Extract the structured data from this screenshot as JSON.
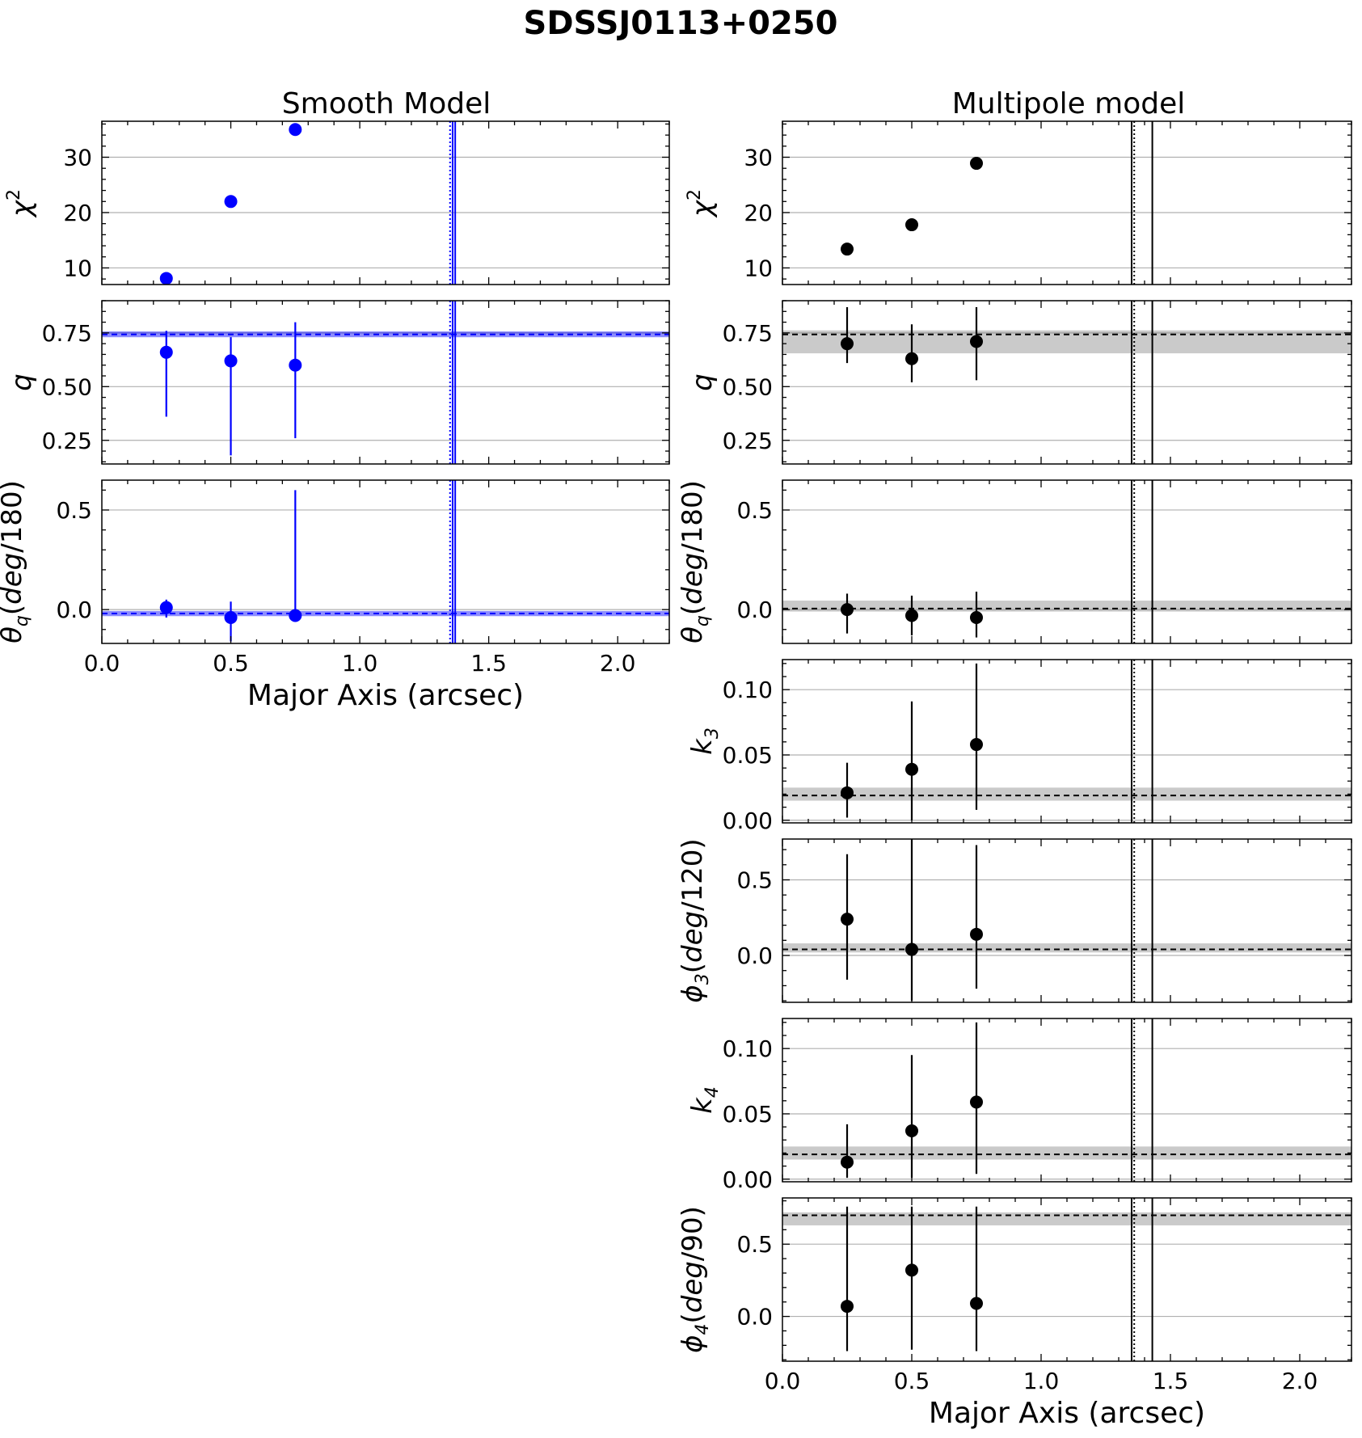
{
  "figure_title": "SDSSJ0113+0250",
  "columns": [
    {
      "id": "smooth",
      "title": "Smooth Model",
      "color": "#0000ff",
      "band_color": "#0000ff",
      "band_opacity": 0.45,
      "vline_style": "dotted",
      "xlabel": "Major Axis (arcsec)"
    },
    {
      "id": "multipole",
      "title": "Multipole model",
      "color": "#000000",
      "band_color": "#808080",
      "band_opacity": 0.42,
      "vline_style": "dotted",
      "xlabel": "Major Axis (arcsec)"
    }
  ],
  "ylabels": {
    "chi2": {
      "base": "χ",
      "sup": "2",
      "sub": "",
      "rest": ""
    },
    "q": {
      "base": "q",
      "sup": "",
      "sub": "",
      "rest": ""
    },
    "theta_q": {
      "base": "θ",
      "sup": "",
      "sub": "q",
      "rest": "(deg/180)"
    },
    "k3": {
      "base": "k",
      "sup": "",
      "sub": "3",
      "rest": ""
    },
    "phi3": {
      "base": "ϕ",
      "sup": "",
      "sub": "3",
      "rest": "(deg/120)"
    },
    "k4": {
      "base": "k",
      "sup": "",
      "sub": "4",
      "rest": ""
    },
    "phi4": {
      "base": "ϕ",
      "sup": "",
      "sub": "4",
      "rest": "(deg/90)"
    }
  },
  "chart_data": [
    {
      "type": "scatter",
      "column": "smooth",
      "ylabel_key": "chi2",
      "xlim": [
        0.0,
        2.2
      ],
      "ylim": [
        7,
        36.5
      ],
      "yticks": [
        10,
        20,
        30
      ],
      "ytick_labels": [
        "10",
        "20",
        "30"
      ],
      "grid": "y",
      "x": [
        0.25,
        0.5,
        0.75
      ],
      "y": [
        8.1,
        22.0,
        35.0
      ],
      "yerr": null,
      "ref_line": null,
      "ref_band": null,
      "vlines": [
        1.35,
        1.37
      ]
    },
    {
      "type": "scatter",
      "column": "smooth",
      "ylabel_key": "q",
      "xlim": [
        0.0,
        2.2
      ],
      "ylim": [
        0.14,
        0.9
      ],
      "yticks": [
        0.25,
        0.5,
        0.75
      ],
      "ytick_labels": [
        "0.25",
        "0.50",
        "0.75"
      ],
      "grid": "y",
      "x": [
        0.25,
        0.5,
        0.75
      ],
      "y": [
        0.66,
        0.62,
        0.6
      ],
      "yerr": [
        [
          0.3,
          0.1
        ],
        [
          0.44,
          0.11
        ],
        [
          0.34,
          0.2
        ]
      ],
      "ref_line": 0.743,
      "ref_band": [
        0.73,
        0.757
      ],
      "vlines": [
        1.35,
        1.37
      ]
    },
    {
      "type": "scatter",
      "column": "smooth",
      "ylabel_key": "theta_q",
      "xlim": [
        0.0,
        2.2
      ],
      "ylim": [
        -0.17,
        0.65
      ],
      "yticks": [
        0.0,
        0.5
      ],
      "ytick_labels": [
        "0.0",
        "0.5"
      ],
      "grid": "y",
      "x": [
        0.25,
        0.5,
        0.75
      ],
      "y": [
        0.01,
        -0.04,
        -0.03
      ],
      "yerr": [
        [
          0.05,
          0.04
        ],
        [
          0.12,
          0.08
        ],
        [
          0.02,
          0.63
        ]
      ],
      "ref_line": -0.02,
      "ref_band": [
        -0.033,
        -0.007
      ],
      "vlines": [
        1.35,
        1.37
      ],
      "xticks": [
        0.0,
        0.5,
        1.0,
        1.5,
        2.0
      ],
      "xtick_labels": [
        "0.0",
        "0.5",
        "1.0",
        "1.5",
        "2.0"
      ],
      "show_xlabel": true
    },
    {
      "type": "scatter",
      "column": "multipole",
      "ylabel_key": "chi2",
      "xlim": [
        0.0,
        2.2
      ],
      "ylim": [
        7,
        36.5
      ],
      "yticks": [
        10,
        20,
        30
      ],
      "ytick_labels": [
        "10",
        "20",
        "30"
      ],
      "grid": "y",
      "x": [
        0.25,
        0.5,
        0.75
      ],
      "y": [
        13.4,
        17.8,
        28.9
      ],
      "yerr": null,
      "ref_line": null,
      "ref_band": null,
      "vlines": [
        1.36,
        1.43
      ]
    },
    {
      "type": "scatter",
      "column": "multipole",
      "ylabel_key": "q",
      "xlim": [
        0.0,
        2.2
      ],
      "ylim": [
        0.14,
        0.9
      ],
      "yticks": [
        0.25,
        0.5,
        0.75
      ],
      "ytick_labels": [
        "0.25",
        "0.50",
        "0.75"
      ],
      "grid": "y",
      "x": [
        0.25,
        0.5,
        0.75
      ],
      "y": [
        0.7,
        0.63,
        0.71
      ],
      "yerr": [
        [
          0.09,
          0.17
        ],
        [
          0.11,
          0.16
        ],
        [
          0.18,
          0.16
        ]
      ],
      "ref_line": 0.743,
      "ref_band": [
        0.655,
        0.762
      ],
      "vlines": [
        1.36,
        1.43
      ]
    },
    {
      "type": "scatter",
      "column": "multipole",
      "ylabel_key": "theta_q",
      "xlim": [
        0.0,
        2.2
      ],
      "ylim": [
        -0.17,
        0.65
      ],
      "yticks": [
        0.0,
        0.5
      ],
      "ytick_labels": [
        "0.0",
        "0.5"
      ],
      "grid": "y",
      "x": [
        0.25,
        0.5,
        0.75
      ],
      "y": [
        0.0,
        -0.03,
        -0.04
      ],
      "yerr": [
        [
          0.12,
          0.08
        ],
        [
          0.1,
          0.1
        ],
        [
          0.1,
          0.13
        ]
      ],
      "ref_line": 0.005,
      "ref_band": [
        -0.01,
        0.045
      ],
      "vlines": [
        1.36,
        1.43
      ]
    },
    {
      "type": "scatter",
      "column": "multipole",
      "ylabel_key": "k3",
      "xlim": [
        0.0,
        2.2
      ],
      "ylim": [
        -0.002,
        0.123
      ],
      "yticks": [
        0.0,
        0.05,
        0.1
      ],
      "ytick_labels": [
        "0.00",
        "0.05",
        "0.10"
      ],
      "grid": "y",
      "x": [
        0.25,
        0.5,
        0.75
      ],
      "y": [
        0.021,
        0.039,
        0.058
      ],
      "yerr": [
        [
          0.019,
          0.023
        ],
        [
          0.039,
          0.052
        ],
        [
          0.05,
          0.062
        ]
      ],
      "ref_line": 0.019,
      "ref_band": [
        0.015,
        0.025
      ],
      "vlines": [
        1.36,
        1.43
      ]
    },
    {
      "type": "scatter",
      "column": "multipole",
      "ylabel_key": "phi3",
      "xlim": [
        0.0,
        2.2
      ],
      "ylim": [
        -0.31,
        0.77
      ],
      "yticks": [
        0.0,
        0.5
      ],
      "ytick_labels": [
        "0.0",
        "0.5"
      ],
      "grid": "y",
      "x": [
        0.25,
        0.5,
        0.75
      ],
      "y": [
        0.24,
        0.04,
        0.14
      ],
      "yerr": [
        [
          0.4,
          0.43
        ],
        [
          0.34,
          0.73
        ],
        [
          0.36,
          0.59
        ]
      ],
      "ref_line": 0.04,
      "ref_band": [
        0.02,
        0.08
      ],
      "vlines": [
        1.36,
        1.43
      ]
    },
    {
      "type": "scatter",
      "column": "multipole",
      "ylabel_key": "k4",
      "xlim": [
        0.0,
        2.2
      ],
      "ylim": [
        -0.002,
        0.123
      ],
      "yticks": [
        0.0,
        0.05,
        0.1
      ],
      "ytick_labels": [
        "0.00",
        "0.05",
        "0.10"
      ],
      "grid": "y",
      "x": [
        0.25,
        0.5,
        0.75
      ],
      "y": [
        0.013,
        0.037,
        0.059
      ],
      "yerr": [
        [
          0.012,
          0.029
        ],
        [
          0.036,
          0.058
        ],
        [
          0.055,
          0.061
        ]
      ],
      "ref_line": 0.019,
      "ref_band": [
        0.015,
        0.025
      ],
      "vlines": [
        1.36,
        1.43
      ]
    },
    {
      "type": "scatter",
      "column": "multipole",
      "ylabel_key": "phi4",
      "xlim": [
        0.0,
        2.2
      ],
      "ylim": [
        -0.31,
        0.82
      ],
      "yticks": [
        0.0,
        0.5
      ],
      "ytick_labels": [
        "0.0",
        "0.5"
      ],
      "grid": "y",
      "x": [
        0.25,
        0.5,
        0.75
      ],
      "y": [
        0.07,
        0.32,
        0.09
      ],
      "yerr": [
        [
          0.31,
          0.69
        ],
        [
          0.55,
          0.44
        ],
        [
          0.33,
          0.67
        ]
      ],
      "ref_line": 0.7,
      "ref_band": [
        0.63,
        0.72
      ],
      "vlines": [
        1.36,
        1.43
      ],
      "xticks": [
        0.0,
        0.5,
        1.0,
        1.5,
        2.0
      ],
      "xtick_labels": [
        "0.0",
        "0.5",
        "1.0",
        "1.5",
        "2.0"
      ],
      "show_xlabel": true
    }
  ]
}
